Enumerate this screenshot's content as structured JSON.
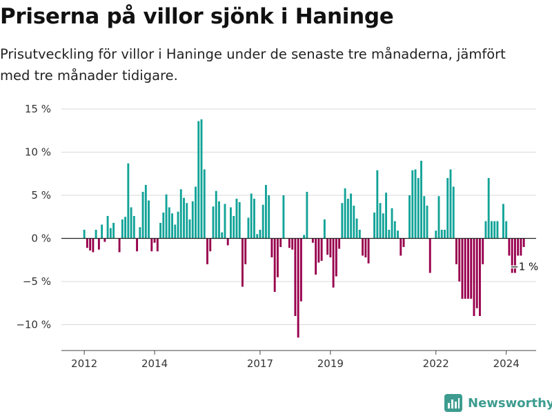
{
  "title": "Priserna på villor sjönk i Haninge",
  "subtitle": "Prisutveckling för villor i Haninge under de senaste tre månaderna, jämfört med tre månader tidigare.",
  "brand": {
    "name": "Newsworthy",
    "icon": "newsworthy-logo-icon",
    "color": "#3d9c8f"
  },
  "colors": {
    "positive": "#12a398",
    "negative": "#98004d",
    "grid": "#d9d9d9",
    "zero": "#222222"
  },
  "chart_data": {
    "type": "bar",
    "title": "",
    "xlabel": "",
    "ylabel": "",
    "ylim": [
      -13,
      15
    ],
    "y_ticks": [
      {
        "value": 15,
        "label": "15 %"
      },
      {
        "value": 10,
        "label": "10 %"
      },
      {
        "value": 5,
        "label": "5 %"
      },
      {
        "value": 0,
        "label": "0 %"
      },
      {
        "value": -5,
        "label": "−5 %"
      },
      {
        "value": -10,
        "label": "−10 %"
      }
    ],
    "x_ticks": [
      {
        "value": 2012,
        "label": "2012"
      },
      {
        "value": 2014,
        "label": "2014"
      },
      {
        "value": 2017,
        "label": "2017"
      },
      {
        "value": 2019,
        "label": "2019"
      },
      {
        "value": 2022,
        "label": "2022"
      },
      {
        "value": 2024,
        "label": "2024"
      }
    ],
    "xlim": [
      2011.35,
      2024.85
    ],
    "first_month": "2012-01",
    "grid": true,
    "series": [
      {
        "values": [
          1.0,
          -1.1,
          -1.4,
          -1.6,
          1.0,
          -1.3,
          1.6,
          -0.4,
          2.6,
          1.2,
          1.8,
          0.0,
          -1.6,
          2.2,
          2.5,
          8.7,
          3.6,
          2.6,
          -1.5,
          1.3,
          5.4,
          6.2,
          4.4,
          -1.5,
          -0.5,
          -1.5,
          1.8,
          3.0,
          5.1,
          3.6,
          2.9,
          1.6,
          3.1,
          5.7,
          4.7,
          4.1,
          2.2,
          4.3,
          6.0,
          13.6,
          13.8,
          8.0,
          -3.0,
          -1.5,
          3.7,
          5.5,
          4.3,
          0.7,
          4.0,
          -0.8,
          3.6,
          2.6,
          4.6,
          4.2,
          -5.6,
          -3.0,
          2.4,
          5.2,
          4.6,
          0.5,
          1.0,
          3.9,
          6.2,
          5.0,
          -2.2,
          -6.2,
          -4.5,
          -1.0,
          5.0,
          0.0,
          -1.1,
          -1.3,
          -9.0,
          -11.5,
          -7.3,
          0.4,
          5.4,
          0.0,
          -0.5,
          -4.2,
          -2.8,
          -2.6,
          2.2,
          -1.9,
          -2.2,
          -5.7,
          -4.4,
          -1.2,
          4.1,
          5.8,
          4.6,
          5.2,
          3.8,
          2.3,
          1.0,
          -2.0,
          -2.2,
          -2.9,
          0.0,
          3.0,
          7.9,
          4.1,
          2.9,
          5.3,
          1.0,
          3.5,
          2.0,
          0.9,
          -2.0,
          -1.0,
          0.0,
          5.0,
          7.9,
          8.0,
          7.0,
          9.0,
          4.9,
          3.8,
          -4.0,
          0.0,
          0.9,
          4.9,
          1.0,
          1.0,
          7.0,
          8.0,
          6.0,
          -3.0,
          -5.0,
          -7.0,
          -7.0,
          -7.0,
          -7.0,
          -9.0,
          -8.1,
          -9.0,
          -3.0,
          2.0,
          7.0,
          2.0,
          2.0,
          2.0,
          0.0,
          4.0,
          2.0,
          -2.0,
          -4.0,
          -4.0,
          -2.0,
          -2.0,
          -1.0
        ]
      }
    ],
    "annotations": [
      {
        "text": "−1 %",
        "x_month_index": 150,
        "y": -2.7
      }
    ]
  }
}
